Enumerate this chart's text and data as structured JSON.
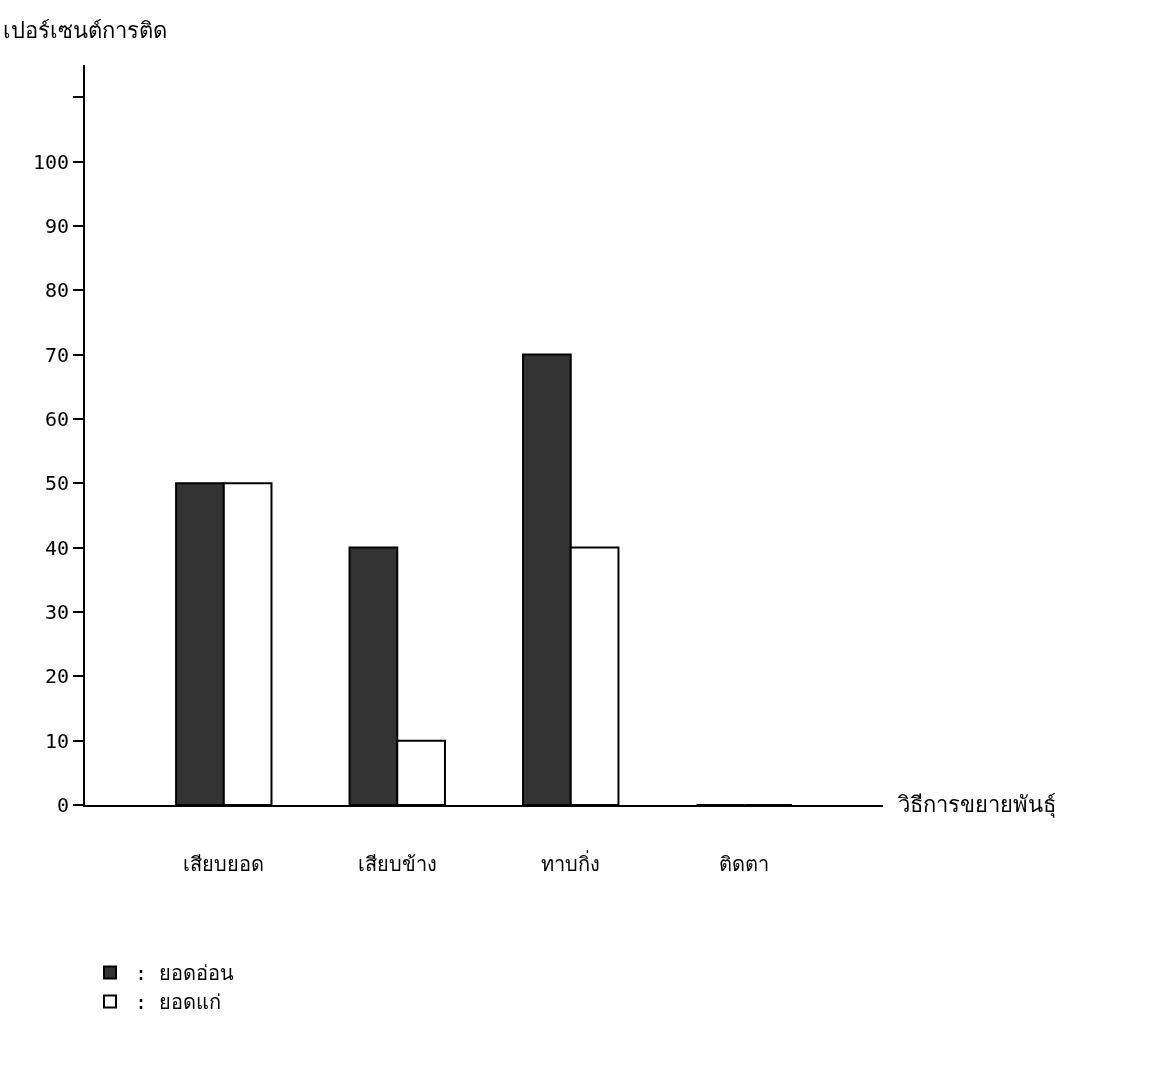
{
  "chart_data": {
    "type": "bar",
    "xlabel": "วิธีการขยายพันธุ์",
    "ylabel": "เปอร์เซนต์การติด",
    "categories": [
      "เสียบยอด",
      "เสียบข้าง",
      "ทาบกิ่ง",
      "ติดตา"
    ],
    "series": [
      {
        "name": ": ยอดอ่อน",
        "color": "#333333",
        "values": [
          50,
          40,
          70,
          0
        ]
      },
      {
        "name": ": ยอดแก่",
        "color": "#ffffff",
        "values": [
          50,
          10,
          40,
          0
        ]
      }
    ],
    "ylim": [
      0,
      115
    ],
    "yticks": [
      0,
      10,
      20,
      30,
      40,
      50,
      60,
      70,
      80,
      90,
      100,
      {
        "value": 110,
        "label": null
      }
    ],
    "legend": "bottom left"
  }
}
